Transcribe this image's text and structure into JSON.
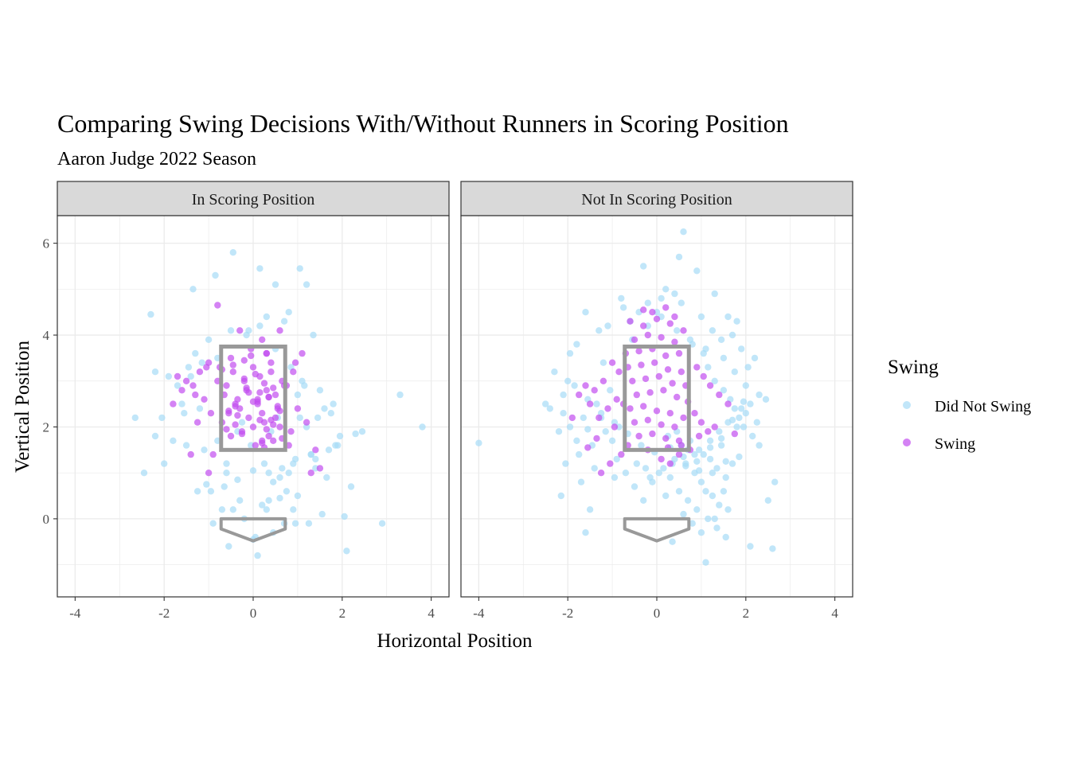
{
  "chart_data": {
    "type": "scatter",
    "title": "Comparing Swing Decisions With/Without Runners in Scoring Position",
    "subtitle": "Aaron Judge 2022 Season",
    "xlabel": "Horizontal Position",
    "ylabel": "Vertical Position",
    "xlim": [
      -4.4,
      4.4
    ],
    "ylim": [
      -1.7,
      6.6
    ],
    "x_ticks": [
      -4,
      -2,
      0,
      2,
      4
    ],
    "y_ticks": [
      0,
      2,
      4,
      6
    ],
    "grid": true,
    "legend": {
      "title": "Swing",
      "position": "right",
      "entries": [
        {
          "name": "Did Not Swing",
          "color": "#a6dcf6"
        },
        {
          "name": "Swing",
          "color": "#c24df0"
        }
      ]
    },
    "point_alpha": 0.7,
    "strike_zone": {
      "x": [
        -0.72,
        0.72
      ],
      "y": [
        1.5,
        3.75
      ],
      "color": "#999999"
    },
    "home_plate": {
      "points": [
        [
          -0.72,
          0
        ],
        [
          0.72,
          0
        ],
        [
          0.72,
          -0.22
        ],
        [
          0,
          -0.48
        ],
        [
          -0.72,
          -0.22
        ]
      ],
      "color": "#999999"
    },
    "panels": [
      {
        "label": "In Scoring Position",
        "series": [
          {
            "name": "Did Not Swing",
            "x": [
              -0.45,
              0.15,
              1.05,
              -0.85,
              -1.35,
              -2.3,
              0.5,
              1.2,
              2.9,
              3.3,
              3.8,
              -2.65,
              -2.2,
              -1.1,
              0.35,
              -0.6,
              0.8,
              1.4,
              1.9,
              2.2,
              2.45,
              -0.35,
              0.2,
              0.9,
              1.55,
              2.05,
              -1.5,
              -2.0,
              -1.8,
              -0.95,
              1.7,
              1.0,
              0.6,
              -0.2,
              0.0,
              -1.25,
              -0.7,
              0.45,
              1.25,
              1.65,
              -1.6,
              -2.05,
              -0.5,
              0.7,
              1.35,
              -1.0,
              0.3,
              -0.1,
              1.8,
              -1.4,
              -0.8,
              0.85,
              1.1,
              -1.9,
              1.5,
              -0.25,
              0.55,
              1.95,
              -2.45,
              -1.2,
              0.0,
              0.65,
              1.3,
              -1.7,
              -0.6,
              0.25,
              0.95,
              1.6,
              -1.05,
              0.4,
              -0.3,
              1.15,
              0.75,
              -1.55,
              2.1,
              -0.9,
              0.15,
              1.45,
              -0.15,
              0.5,
              1.85,
              -0.65,
              0.9,
              -1.3,
              0.35,
              1.2,
              -0.45,
              0.7,
              1.0,
              -0.8,
              0.1,
              1.4,
              -1.15,
              0.6,
              -0.05,
              1.05,
              0.3,
              -1.45,
              0.8,
              1.75,
              -0.35,
              0.45,
              -2.2,
              2.3,
              1.3,
              -0.55,
              0.05,
              0.95
            ],
            "y": [
              5.8,
              5.45,
              5.45,
              5.3,
              5.0,
              4.45,
              5.1,
              5.1,
              -0.1,
              2.7,
              2.0,
              2.2,
              1.8,
              1.5,
              1.0,
              1.2,
              1.0,
              1.3,
              1.6,
              0.7,
              1.9,
              0.85,
              0.3,
              0.2,
              0.1,
              0.05,
              1.6,
              1.2,
              1.7,
              0.6,
              1.5,
              0.5,
              0.45,
              0.0,
              -0.45,
              0.6,
              0.2,
              -0.3,
              -0.1,
              0.9,
              2.5,
              2.2,
              4.1,
              4.3,
              4.0,
              3.9,
              4.4,
              4.1,
              2.5,
              3.1,
              3.5,
              3.3,
              3.0,
              3.1,
              2.8,
              2.1,
              2.2,
              1.8,
              1.0,
              2.4,
              1.05,
              1.1,
              1.4,
              2.9,
              1.0,
              1.2,
              1.3,
              2.4,
              0.75,
              1.9,
              0.4,
              2.9,
              0.6,
              2.3,
              -0.7,
              -0.1,
              4.2,
              2.2,
              4.0,
              3.7,
              1.6,
              0.7,
              1.2,
              3.6,
              0.4,
              2.0,
              0.2,
              -0.1,
              2.7,
              1.7,
              -0.8,
              1.1,
              3.4,
              0.9,
              1.6,
              2.2,
              0.2,
              3.3,
              4.5,
              2.3,
              1.9,
              0.8,
              3.2,
              1.85,
              1.4,
              -0.6,
              -0.4,
              -0.1
            ]
          },
          {
            "name": "Swing",
            "x": [
              -0.8,
              -0.3,
              0.2,
              0.6,
              -0.5,
              0.0,
              0.4,
              -0.2,
              0.3,
              -0.6,
              0.1,
              0.5,
              -0.4,
              0.2,
              -0.1,
              0.6,
              -0.7,
              0.35,
              -0.25,
              0.45,
              0.05,
              -0.55,
              0.25,
              -0.35,
              0.55,
              0.15,
              -0.15,
              0.4,
              -0.45,
              0.3,
              -0.05,
              0.65,
              -0.65,
              0.1,
              -0.3,
              0.5,
              0.0,
              -0.5,
              0.2,
              0.7,
              -0.75,
              0.35,
              -0.2,
              0.45,
              -0.4,
              0.15,
              -0.6,
              0.25,
              -0.1,
              0.6,
              -1.0,
              -1.2,
              -1.5,
              -1.7,
              -1.1,
              -1.35,
              -0.95,
              -1.25,
              -1.8,
              -1.6,
              -0.9,
              -1.4,
              0.9,
              1.0,
              0.85,
              1.2,
              1.4,
              1.1,
              0.95,
              -0.8,
              0.8,
              0.3,
              -1.0,
              1.3,
              1.5,
              -1.3,
              -1.05,
              0.75,
              0.1,
              -0.15,
              0.25,
              -0.35,
              0.45,
              0.05,
              -0.45,
              0.55,
              0.15,
              -0.25,
              0.35,
              -0.05,
              0.2,
              0.4,
              -0.55,
              0.65,
              -0.7,
              0.0,
              -0.2,
              0.3,
              -0.4
            ],
            "y": [
              4.65,
              4.1,
              3.9,
              4.1,
              3.5,
              3.3,
              3.2,
              3.0,
              2.8,
              2.9,
              2.6,
              2.7,
              2.5,
              2.3,
              2.2,
              2.0,
              2.1,
              1.8,
              1.9,
              1.7,
              1.6,
              2.3,
              2.1,
              2.6,
              2.4,
              3.1,
              2.8,
              3.4,
              3.2,
              3.6,
              3.7,
              3.0,
              2.7,
              2.5,
              2.4,
              2.2,
              2.0,
              1.8,
              1.7,
              2.9,
              3.3,
              2.65,
              3.05,
              2.85,
              2.45,
              2.15,
              1.95,
              1.55,
              2.75,
              2.35,
              3.4,
              3.2,
              3.0,
              3.1,
              2.6,
              2.9,
              2.3,
              2.1,
              2.5,
              2.8,
              1.4,
              1.4,
              3.2,
              2.4,
              1.9,
              2.1,
              1.5,
              3.6,
              3.4,
              3.0,
              1.6,
              3.6,
              1.0,
              1.0,
              1.1,
              2.7,
              3.3,
              2.9,
              2.55,
              2.85,
              2.95,
              2.25,
              2.05,
              3.15,
              3.35,
              2.45,
              2.75,
              1.85,
              2.65,
              3.55,
              1.65,
              2.15,
              2.35,
              1.75,
              3.25,
              2.55,
              3.45,
              1.95,
              2.05
            ]
          }
        ]
      },
      {
        "label": "Not In Scoring Position",
        "series": [
          {
            "name": "Did Not Swing",
            "x": [
              0.6,
              0.5,
              0.9,
              -0.3,
              -0.8,
              0.2,
              1.3,
              -1.6,
              -2.3,
              -2.5,
              -2.1,
              -4.0,
              -2.15,
              -1.5,
              -1.6,
              -0.95,
              0.35,
              1.1,
              2.1,
              2.6,
              2.65,
              2.5,
              1.6,
              1.8,
              -0.2,
              0.0,
              0.4,
              1.0,
              1.25,
              1.45,
              1.7,
              1.9,
              2.05,
              2.2,
              -0.6,
              -1.1,
              -1.3,
              -1.8,
              -1.95,
              -2.0,
              -1.2,
              -0.75,
              -0.4,
              0.1,
              0.55,
              0.8,
              1.05,
              1.15,
              1.3,
              1.5,
              1.65,
              1.75,
              1.85,
              1.95,
              2.15,
              2.3,
              0.45,
              0.75,
              0.95,
              1.2,
              1.35,
              1.55,
              0.65,
              0.85,
              1.0,
              1.1,
              1.25,
              1.4,
              1.6,
              0.3,
              0.5,
              0.7,
              0.9,
              1.15,
              1.35,
              1.55,
              -0.1,
              0.2,
              0.6,
              0.8,
              1.0,
              1.3,
              1.5,
              1.7,
              -0.5,
              -0.3,
              -0.9,
              -1.4,
              -1.7,
              -2.2,
              -2.4,
              -1.0,
              -0.7,
              -1.25,
              -1.55,
              -1.85,
              -2.1,
              -0.45,
              -0.15,
              0.15,
              0.4,
              0.7,
              1.05,
              1.45,
              1.8,
              2.0,
              2.25,
              2.45,
              -0.85,
              -1.15,
              -1.45,
              -1.75,
              -2.05,
              0.25,
              0.55,
              0.85,
              1.2,
              1.4,
              1.6,
              1.9,
              2.1,
              -0.25,
              0.05,
              0.35,
              0.65,
              0.95,
              1.25,
              1.55,
              1.85,
              -1.05,
              -1.35,
              -1.65,
              -1.95,
              -0.55,
              -0.2,
              0.1,
              0.45,
              0.75,
              1.1,
              1.5,
              1.75,
              2.0,
              2.3,
              -0.35,
              -0.05,
              0.3,
              0.6,
              0.9,
              1.2,
              1.45,
              1.7,
              1.95,
              -0.65,
              -0.95,
              -1.25,
              -1.55,
              -1.8
            ],
            "y": [
              6.25,
              5.7,
              5.4,
              5.5,
              4.8,
              5.0,
              4.9,
              4.5,
              3.2,
              2.5,
              2.3,
              1.65,
              0.5,
              0.2,
              -0.3,
              0.9,
              -0.5,
              -0.95,
              -0.6,
              -0.65,
              0.8,
              0.4,
              4.4,
              4.3,
              4.7,
              4.5,
              4.9,
              4.4,
              4.1,
              3.9,
              4.0,
              3.7,
              3.3,
              3.5,
              4.3,
              4.2,
              4.1,
              3.8,
              3.6,
              3.0,
              3.4,
              4.6,
              4.5,
              4.8,
              4.7,
              3.8,
              3.6,
              3.3,
              3.0,
              2.8,
              2.6,
              2.4,
              2.2,
              2.0,
              1.8,
              1.6,
              1.9,
              1.7,
              1.5,
              1.3,
              1.1,
              0.9,
              1.2,
              1.0,
              0.8,
              0.6,
              0.5,
              0.3,
              0.2,
              0.9,
              0.6,
              0.4,
              0.2,
              0.0,
              -0.2,
              -0.4,
              0.8,
              0.5,
              0.1,
              -0.1,
              -0.3,
              0.0,
              0.6,
              1.2,
              0.7,
              0.4,
              1.3,
              1.1,
              0.8,
              1.9,
              2.4,
              1.7,
              1.0,
              2.2,
              2.6,
              2.9,
              2.7,
              1.2,
              0.9,
              1.1,
              1.3,
              1.5,
              1.4,
              1.6,
              2.0,
              2.3,
              2.1,
              2.6,
              2.0,
              1.9,
              1.6,
              1.4,
              1.2,
              1.8,
              1.6,
              1.4,
              1.7,
              1.9,
              2.1,
              2.4,
              2.5,
              1.1,
              1.0,
              1.2,
              1.15,
              1.05,
              1.0,
              1.25,
              1.35,
              2.8,
              2.5,
              2.2,
              2.0,
              3.9,
              4.2,
              4.4,
              4.1,
              3.9,
              3.7,
              3.5,
              3.2,
              2.9,
              2.7,
              1.6,
              1.45,
              1.55,
              1.35,
              1.25,
              1.55,
              1.75,
              2.15,
              2.55,
              1.85,
              2.1,
              2.3,
              1.95,
              1.7
            ]
          },
          {
            "name": "Swing",
            "x": [
              -0.6,
              -0.3,
              0.0,
              0.3,
              0.6,
              -0.5,
              -0.2,
              0.1,
              0.4,
              -0.7,
              -0.4,
              -0.1,
              0.2,
              0.5,
              -0.65,
              -0.35,
              -0.05,
              0.25,
              0.55,
              -0.55,
              -0.25,
              0.05,
              0.35,
              0.65,
              -0.45,
              -0.15,
              0.15,
              0.45,
              -0.75,
              0.7,
              -0.6,
              -0.3,
              0.0,
              0.3,
              0.6,
              -0.5,
              -0.2,
              0.1,
              0.4,
              -0.4,
              -0.1,
              0.2,
              0.5,
              -0.65,
              0.25,
              0.55,
              -0.85,
              -1.0,
              -1.2,
              -1.4,
              -1.6,
              -0.9,
              -1.1,
              -1.3,
              -1.5,
              -1.75,
              0.9,
              1.05,
              1.2,
              1.4,
              1.6,
              0.85,
              1.0,
              1.3,
              0.2,
              -0.1,
              0.4,
              -0.3,
              -1.9,
              0.75,
              -0.8,
              -1.05,
              -1.25,
              0.95,
              1.15,
              -0.95,
              0.1,
              0.3,
              -0.2,
              0.5,
              1.75,
              -1.35,
              -1.55
            ],
            "y": [
              4.3,
              4.2,
              4.35,
              4.25,
              4.1,
              3.9,
              4.0,
              3.95,
              3.85,
              3.6,
              3.65,
              3.7,
              3.55,
              3.6,
              3.3,
              3.35,
              3.4,
              3.25,
              3.2,
              3.0,
              3.05,
              3.1,
              2.95,
              2.9,
              2.7,
              2.75,
              2.8,
              2.65,
              2.5,
              2.55,
              2.4,
              2.45,
              2.35,
              2.3,
              2.2,
              2.1,
              2.15,
              2.05,
              2.0,
              1.8,
              1.85,
              1.75,
              1.7,
              1.6,
              1.55,
              1.6,
              3.2,
              3.4,
              3.0,
              2.8,
              2.9,
              2.6,
              2.4,
              2.2,
              2.5,
              2.7,
              3.3,
              3.1,
              2.9,
              2.7,
              2.5,
              2.3,
              2.1,
              2.0,
              4.6,
              4.5,
              4.4,
              4.55,
              2.2,
              1.5,
              1.4,
              1.2,
              1.0,
              1.8,
              1.9,
              2.0,
              1.3,
              1.2,
              1.5,
              1.4,
              1.85,
              1.75,
              1.55
            ]
          }
        ]
      }
    ]
  }
}
